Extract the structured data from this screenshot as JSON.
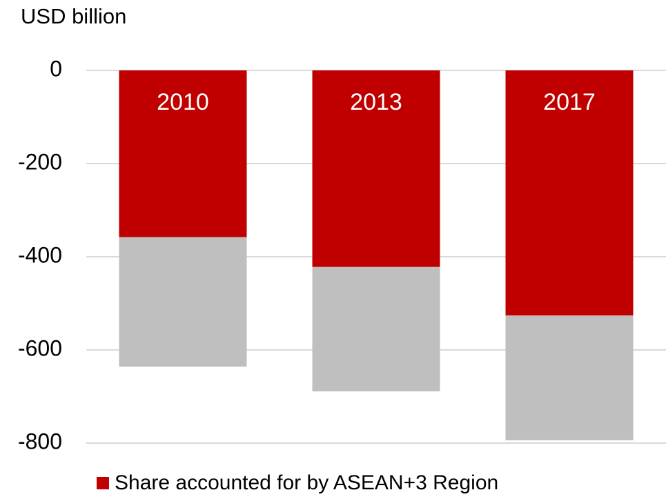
{
  "chart_data": {
    "type": "bar",
    "stacked": true,
    "y_axis_label": "USD billion",
    "categories": [
      "2010",
      "2013",
      "2017"
    ],
    "series": [
      {
        "name": "Share accounted for by ASEAN+3 Region",
        "color": "#c00000",
        "values": [
          -358,
          -422,
          -526
        ]
      },
      {
        "color": "#bfbfbf",
        "values": [
          -278,
          -267,
          -268
        ]
      }
    ],
    "ylim": [
      -800,
      0
    ],
    "yticks": [
      0,
      -200,
      -400,
      -600,
      -800
    ],
    "grid": true
  }
}
